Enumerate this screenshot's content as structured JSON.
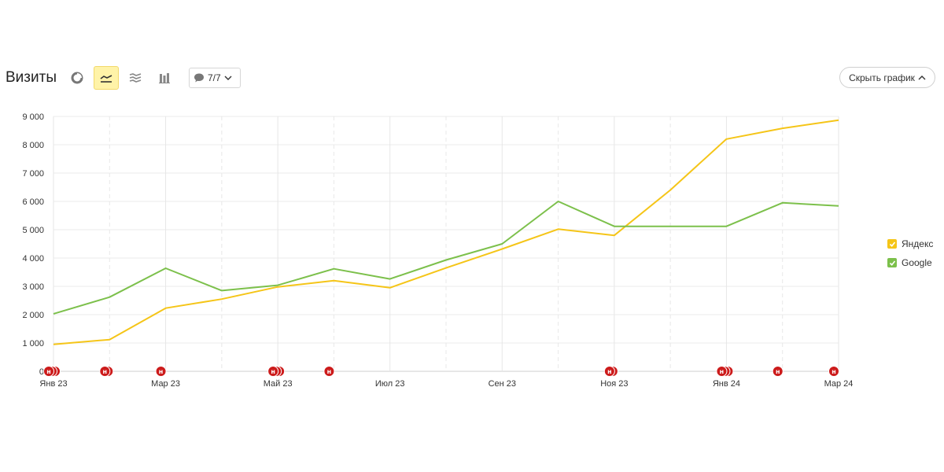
{
  "header": {
    "title": "Визиты",
    "notes_filter": "7/7",
    "hide_chart_label": "Скрыть график"
  },
  "legend": {
    "items": [
      {
        "label": "Яндекс",
        "color": "#f5c518"
      },
      {
        "label": "Google",
        "color": "#7cc04b"
      }
    ]
  },
  "chart_data": {
    "type": "line",
    "x": [
      "2023-01",
      "2023-02",
      "2023-03",
      "2023-04",
      "2023-05",
      "2023-06",
      "2023-07",
      "2023-08",
      "2023-09",
      "2023-10",
      "2023-11",
      "2023-12",
      "2024-01",
      "2024-02",
      "2024-03"
    ],
    "x_tick_labels": [
      {
        "x": "2023-01",
        "label": "Янв 23"
      },
      {
        "x": "2023-03",
        "label": "Мар 23"
      },
      {
        "x": "2023-05",
        "label": "Май 23"
      },
      {
        "x": "2023-07",
        "label": "Июл 23"
      },
      {
        "x": "2023-09",
        "label": "Сен 23"
      },
      {
        "x": "2023-11",
        "label": "Ноя 23"
      },
      {
        "x": "2024-01",
        "label": "Янв 24"
      },
      {
        "x": "2024-03",
        "label": "Мар 24"
      }
    ],
    "y_tick_labels": [
      "0",
      "1 000",
      "2 000",
      "3 000",
      "4 000",
      "5 000",
      "6 000",
      "7 000",
      "8 000",
      "9 000"
    ],
    "ylim": [
      0,
      9000
    ],
    "series": [
      {
        "name": "Яндекс",
        "color": "#f5c518",
        "values": [
          950,
          1120,
          2230,
          2550,
          2980,
          3200,
          2950,
          3650,
          4320,
          5020,
          4800,
          6400,
          8200,
          8580,
          8870
        ]
      },
      {
        "name": "Google",
        "color": "#7cc04b",
        "values": [
          2030,
          2620,
          3640,
          2850,
          3040,
          3620,
          3260,
          3930,
          4500,
          6000,
          5120,
          5120,
          5120,
          5950,
          5840
        ]
      }
    ],
    "notes": [
      {
        "x": "2023-01",
        "count": 3,
        "label": "н"
      },
      {
        "x": "2023-02",
        "count": 2,
        "label": "н"
      },
      {
        "x": "2023-03",
        "count": 1,
        "label": "н"
      },
      {
        "x": "2023-05",
        "count": 3,
        "label": "н"
      },
      {
        "x": "2023-06",
        "count": 1,
        "label": "н"
      },
      {
        "x": "2023-11",
        "count": 2,
        "label": "н"
      },
      {
        "x": "2024-01",
        "count": 3,
        "label": "н"
      },
      {
        "x": "2024-02",
        "count": 1,
        "label": "н"
      },
      {
        "x": "2024-03",
        "count": 1,
        "label": "н"
      }
    ],
    "grid": true,
    "legend_position": "right"
  }
}
